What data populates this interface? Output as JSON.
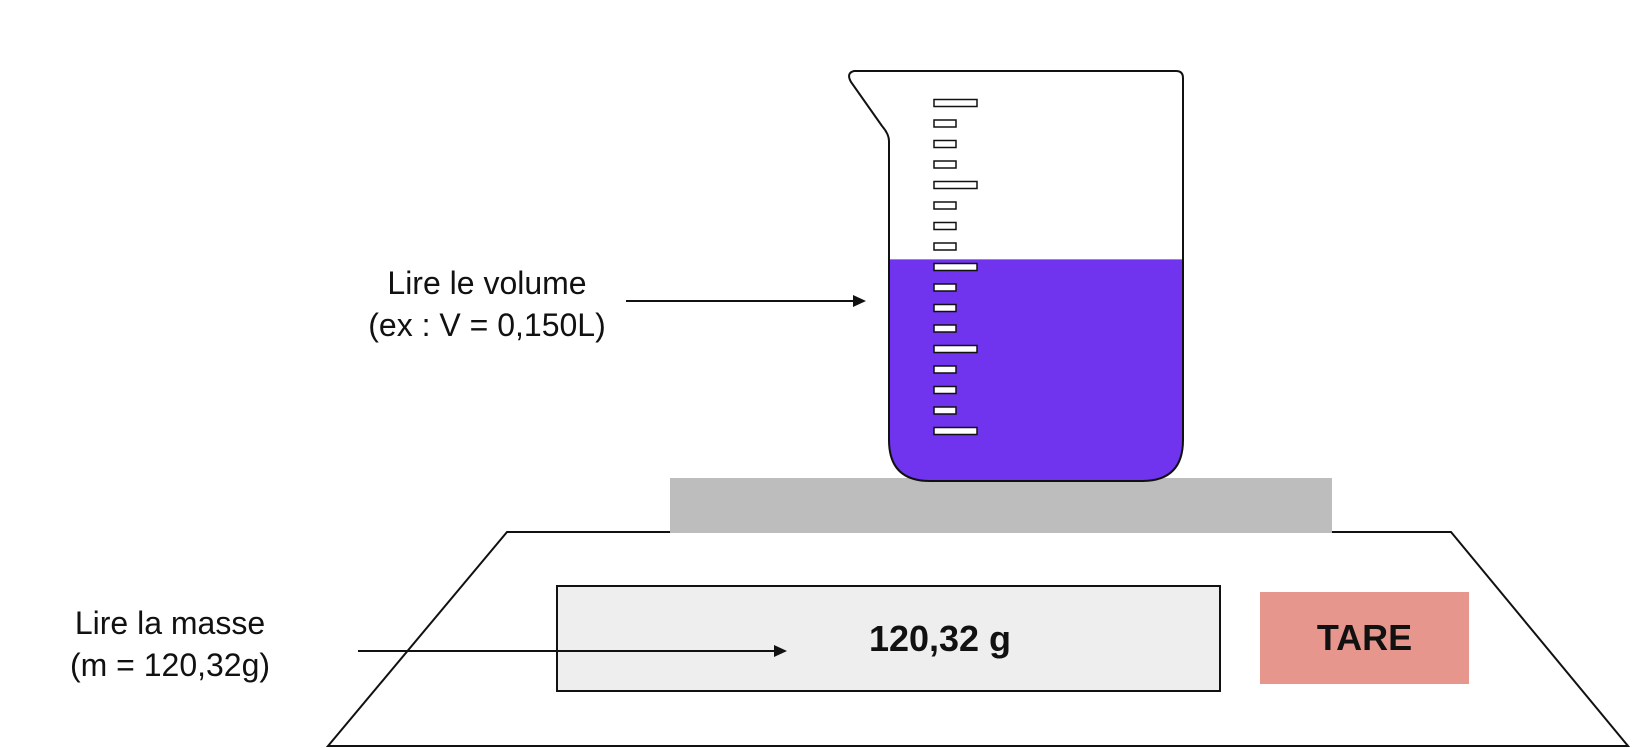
{
  "labels": {
    "volume_line1": "Lire le volume",
    "volume_line2": "(ex : V = 0,150L)",
    "mass_line1": "Lire la masse",
    "mass_line2": "(m = 120,32g)"
  },
  "scale": {
    "display_value": "120,32 g",
    "tare_label": "TARE"
  },
  "beaker": {
    "fill_fraction": 0.55,
    "graduation_count": 17
  },
  "colors": {
    "liquid": "#7033ee",
    "scale_pan": "#bdbdbd",
    "display_bg": "#eeeeee",
    "tare_button": "#e6968c",
    "outline": "#111111"
  }
}
